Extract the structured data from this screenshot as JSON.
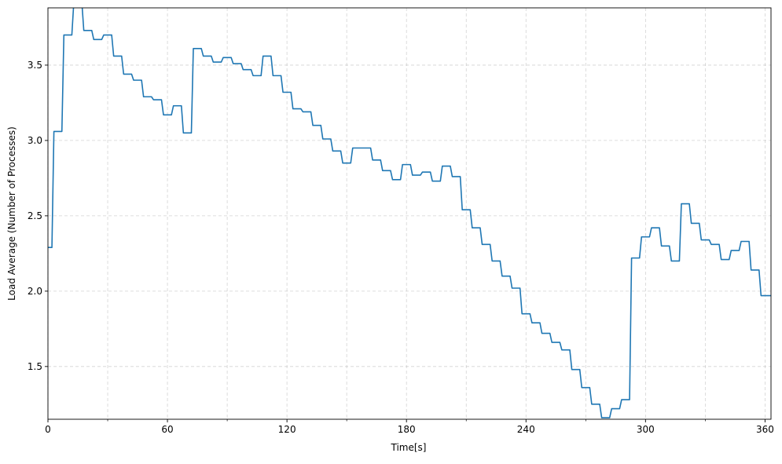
{
  "chart_data": {
    "type": "line",
    "title": "",
    "xlabel": "Time[s]",
    "ylabel": "Load Average (Number of Processes)",
    "xlim": [
      0,
      363
    ],
    "ylim": [
      1.15,
      3.88
    ],
    "grid": true,
    "grid_style": "dashed",
    "x_ticks": [
      0,
      60,
      120,
      180,
      240,
      300,
      360
    ],
    "x_tick_labels": [
      "0",
      "60",
      "120",
      "180",
      "240",
      "300",
      "360"
    ],
    "x_minor_ticks": [
      30,
      90,
      150,
      210,
      270,
      330
    ],
    "y_ticks": [
      1.5,
      2.0,
      2.5,
      3.0,
      3.5
    ],
    "y_tick_labels": [
      "1.5",
      "2.0",
      "2.5",
      "3.0",
      "3.5"
    ],
    "line_color": "#1f77b4",
    "series": [
      {
        "x": [
          0,
          2,
          3,
          7,
          8,
          12,
          13,
          17,
          18,
          22,
          23,
          27,
          28,
          32,
          33,
          37,
          38,
          42,
          43,
          47,
          48,
          52,
          53,
          57,
          58,
          62,
          63,
          67,
          68,
          72,
          73,
          77,
          78,
          82,
          83,
          87,
          88,
          92,
          93,
          97,
          98,
          102,
          103,
          107,
          108,
          112,
          113,
          117,
          118,
          122,
          123,
          127,
          128,
          132,
          133,
          137,
          138,
          142,
          143,
          147,
          148,
          152,
          153,
          157,
          158,
          162,
          163,
          167,
          168,
          172,
          173,
          177,
          178,
          182,
          183,
          187,
          188,
          192,
          193,
          197,
          198,
          202,
          203,
          207,
          208,
          212,
          213,
          217,
          218,
          222,
          223,
          227,
          228,
          232,
          233,
          237,
          238,
          242,
          243,
          247,
          248,
          252,
          253,
          257,
          258,
          262,
          263,
          267,
          268,
          272,
          273,
          277,
          278,
          282,
          283,
          287,
          288,
          292,
          293,
          297,
          298,
          302,
          303,
          307,
          308,
          312,
          313,
          317,
          318,
          322,
          323,
          327,
          328,
          332,
          333,
          337,
          338,
          342,
          343,
          347,
          348,
          352,
          353,
          357,
          358,
          363
        ],
        "y": [
          2.29,
          2.29,
          3.06,
          3.06,
          3.7,
          3.7,
          3.92,
          3.92,
          3.73,
          3.73,
          3.67,
          3.67,
          3.7,
          3.7,
          3.56,
          3.56,
          3.44,
          3.44,
          3.4,
          3.4,
          3.29,
          3.29,
          3.27,
          3.27,
          3.17,
          3.17,
          3.23,
          3.23,
          3.05,
          3.05,
          3.61,
          3.61,
          3.56,
          3.56,
          3.52,
          3.52,
          3.55,
          3.55,
          3.51,
          3.51,
          3.47,
          3.47,
          3.43,
          3.43,
          3.56,
          3.56,
          3.43,
          3.43,
          3.32,
          3.32,
          3.21,
          3.21,
          3.19,
          3.19,
          3.1,
          3.1,
          3.01,
          3.01,
          2.93,
          2.93,
          2.85,
          2.85,
          2.95,
          2.95,
          2.95,
          2.95,
          2.87,
          2.87,
          2.8,
          2.8,
          2.74,
          2.74,
          2.84,
          2.84,
          2.77,
          2.77,
          2.79,
          2.79,
          2.73,
          2.73,
          2.83,
          2.83,
          2.76,
          2.76,
          2.54,
          2.54,
          2.42,
          2.42,
          2.31,
          2.31,
          2.2,
          2.2,
          2.1,
          2.1,
          2.02,
          2.02,
          1.85,
          1.85,
          1.79,
          1.79,
          1.72,
          1.72,
          1.66,
          1.66,
          1.61,
          1.61,
          1.48,
          1.48,
          1.36,
          1.36,
          1.25,
          1.25,
          1.16,
          1.16,
          1.22,
          1.22,
          1.28,
          1.28,
          2.22,
          2.22,
          2.36,
          2.36,
          2.42,
          2.42,
          2.3,
          2.3,
          2.2,
          2.2,
          2.58,
          2.58,
          2.45,
          2.45,
          2.34,
          2.34,
          2.31,
          2.31,
          2.21,
          2.21,
          2.27,
          2.27,
          2.33,
          2.33,
          2.14,
          2.14,
          1.97,
          1.97
        ]
      }
    ]
  }
}
